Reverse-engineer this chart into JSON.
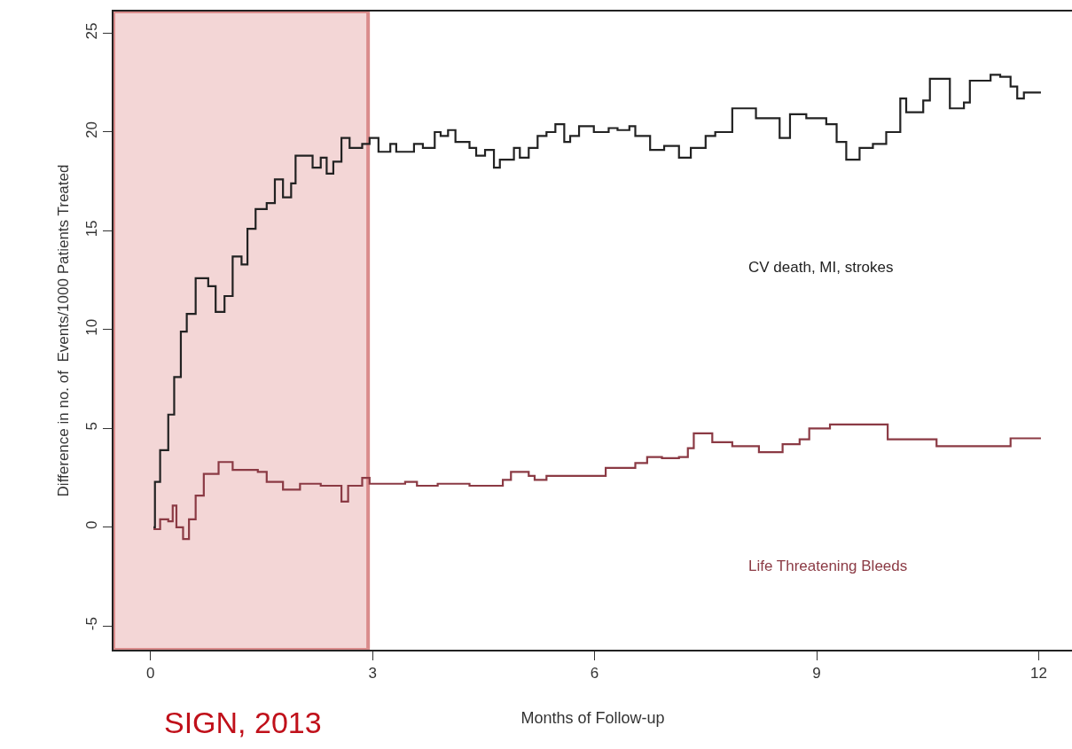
{
  "chart_data": {
    "type": "step",
    "xlabel": "Months of Follow-up",
    "ylabel": "Difference in no. of  Events/1000 Patients Treated",
    "xlim": [
      -0.5,
      12.45
    ],
    "ylim": [
      -6.2,
      26.1
    ],
    "xticks": [
      0,
      3,
      6,
      9,
      12
    ],
    "yticks": [
      -5,
      0,
      5,
      10,
      15,
      20,
      25
    ],
    "grid": false,
    "legend": false,
    "series": [
      {
        "name": "CV death, MI, strokes",
        "color": "#222222",
        "x": [
          0.04,
          0.06,
          0.13,
          0.24,
          0.32,
          0.41,
          0.49,
          0.61,
          0.78,
          0.88,
          1.0,
          1.11,
          1.23,
          1.31,
          1.42,
          1.57,
          1.68,
          1.79,
          1.9,
          1.96,
          2.19,
          2.3,
          2.38,
          2.47,
          2.58,
          2.69,
          2.86,
          2.96,
          3.08,
          3.24,
          3.32,
          3.48,
          3.56,
          3.68,
          3.84,
          3.92,
          4.02,
          4.12,
          4.31,
          4.4,
          4.52,
          4.64,
          4.72,
          4.83,
          4.91,
          4.99,
          5.11,
          5.23,
          5.35,
          5.47,
          5.59,
          5.67,
          5.79,
          5.99,
          6.19,
          6.31,
          6.47,
          6.55,
          6.75,
          6.94,
          7.14,
          7.3,
          7.5,
          7.63,
          7.86,
          8.18,
          8.5,
          8.64,
          8.86,
          9.13,
          9.27,
          9.4,
          9.58,
          9.76,
          9.94,
          10.13,
          10.21,
          10.44,
          10.53,
          10.8,
          10.99,
          11.07,
          11.35,
          11.48,
          11.62,
          11.71,
          11.8,
          12.03
        ],
        "values": [
          0,
          2.3,
          3.9,
          5.7,
          7.6,
          9.9,
          10.8,
          12.6,
          12.2,
          10.9,
          11.7,
          13.7,
          13.3,
          15.1,
          16.1,
          16.4,
          17.6,
          16.7,
          17.4,
          18.8,
          18.2,
          18.7,
          17.9,
          18.5,
          19.7,
          19.2,
          19.4,
          19.7,
          19.0,
          19.4,
          19.0,
          19.0,
          19.4,
          19.2,
          20.0,
          19.8,
          20.1,
          19.5,
          19.2,
          18.8,
          19.1,
          18.2,
          18.6,
          18.6,
          19.2,
          18.7,
          19.2,
          19.8,
          20.0,
          20.4,
          19.5,
          19.8,
          20.3,
          20.0,
          20.2,
          20.1,
          20.3,
          19.8,
          19.1,
          19.3,
          18.7,
          19.2,
          19.8,
          20.0,
          21.2,
          20.7,
          19.7,
          20.9,
          20.7,
          20.4,
          19.5,
          18.6,
          19.2,
          19.4,
          20.0,
          21.7,
          21.0,
          21.6,
          22.7,
          21.2,
          21.5,
          22.6,
          22.9,
          22.8,
          22.3,
          21.7,
          22.0,
          22.0
        ]
      },
      {
        "name": "Life Threatening Bleeds",
        "color": "#8b3a44",
        "x": [
          0.04,
          0.13,
          0.24,
          0.3,
          0.35,
          0.44,
          0.52,
          0.61,
          0.72,
          0.92,
          1.11,
          1.45,
          1.57,
          1.79,
          2.02,
          2.3,
          2.58,
          2.67,
          2.86,
          2.96,
          3.44,
          3.6,
          3.88,
          4.31,
          4.64,
          4.76,
          4.87,
          5.11,
          5.19,
          5.35,
          6.07,
          6.15,
          6.47,
          6.55,
          6.71,
          6.91,
          7.14,
          7.26,
          7.34,
          7.46,
          7.59,
          7.86,
          8.22,
          8.54,
          8.77,
          8.9,
          9.18,
          9.81,
          9.96,
          10.62,
          11.62,
          12.03
        ],
        "values": [
          -0.1,
          0.4,
          0.3,
          1.1,
          0,
          -0.6,
          0.4,
          1.6,
          2.7,
          3.3,
          2.9,
          2.8,
          2.3,
          1.9,
          2.2,
          2.1,
          1.3,
          2.1,
          2.5,
          2.2,
          2.3,
          2.1,
          2.2,
          2.1,
          2.1,
          2.4,
          2.8,
          2.6,
          2.4,
          2.6,
          2.6,
          3.0,
          3.0,
          3.25,
          3.55,
          3.5,
          3.55,
          4.0,
          4.75,
          4.75,
          4.3,
          4.1,
          3.8,
          4.2,
          4.45,
          5.0,
          5.2,
          5.2,
          4.45,
          4.1,
          4.5,
          4.5
        ]
      }
    ],
    "bands": [
      {
        "axis": "x",
        "from": -0.5,
        "to": 2.94,
        "color": "#f3d6d6"
      }
    ],
    "annotations": [
      "SIGN, 2013"
    ]
  }
}
